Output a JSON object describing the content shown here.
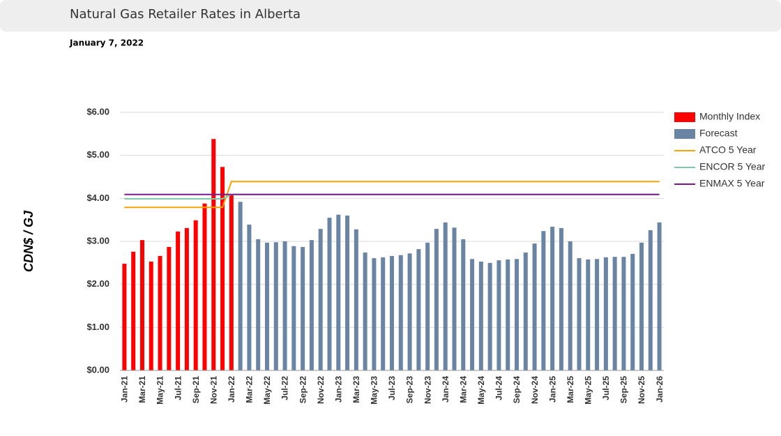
{
  "header": {
    "title": "Natural Gas Retailer Rates in Alberta",
    "date": "January 7, 2022"
  },
  "chart_data": {
    "type": "bar",
    "y_label": "CDN$ / GJ",
    "grid": true,
    "legend": "right",
    "categories": [
      "Jan-21",
      null,
      "Mar-21",
      null,
      "May-21",
      null,
      "Jul-21",
      null,
      "Sep-21",
      null,
      "Nov-21",
      null,
      "Jan-22",
      null,
      "Mar-22",
      null,
      "May-22",
      null,
      "Jul-22",
      null,
      "Sep-22",
      null,
      "Nov-22",
      null,
      "Jan-23",
      null,
      "Mar-23",
      null,
      "May-23",
      null,
      "Jul-23",
      null,
      "Sep-23",
      null,
      "Nov-23",
      null,
      "Jan-24",
      null,
      "Mar-24",
      null,
      "May-24",
      null,
      "Jul-24",
      null,
      "Sep-24",
      null,
      "Nov-24",
      null,
      "Jan-25",
      null,
      "Mar-25",
      null,
      "May-25",
      null,
      "Jul-25",
      null,
      "Sep-25",
      null,
      "Nov-25",
      null,
      "Jan-26"
    ],
    "ylim": [
      0,
      6
    ],
    "yticks": [
      {
        "value": 0,
        "label": "$0.00"
      },
      {
        "value": 1,
        "label": "$1.00"
      },
      {
        "value": 2,
        "label": "$2.00"
      },
      {
        "value": 3,
        "label": "$3.00"
      },
      {
        "value": 4,
        "label": "$4.00"
      },
      {
        "value": 5,
        "label": "$5.00"
      },
      {
        "value": 6,
        "label": "$6.00"
      }
    ],
    "series": [
      {
        "name": "Monthly Index",
        "type": "bar",
        "color": "#ff0000",
        "values": [
          2.48,
          2.76,
          3.03,
          2.53,
          2.66,
          2.87,
          3.23,
          3.31,
          3.49,
          3.88,
          5.38,
          4.73,
          4.07,
          null,
          null,
          null,
          null,
          null,
          null,
          null,
          null,
          null,
          null,
          null,
          null,
          null,
          null,
          null,
          null,
          null,
          null,
          null,
          null,
          null,
          null,
          null,
          null,
          null,
          null,
          null,
          null,
          null,
          null,
          null,
          null,
          null,
          null,
          null,
          null,
          null,
          null,
          null,
          null,
          null,
          null,
          null,
          null,
          null,
          null,
          null,
          null
        ]
      },
      {
        "name": "Forecast",
        "type": "bar",
        "color": "#6a85a3",
        "values": [
          null,
          null,
          null,
          null,
          null,
          null,
          null,
          null,
          null,
          null,
          null,
          null,
          null,
          3.92,
          3.39,
          3.05,
          2.97,
          2.98,
          3.0,
          2.89,
          2.87,
          3.03,
          3.29,
          3.55,
          3.62,
          3.6,
          3.28,
          2.74,
          2.61,
          2.63,
          2.66,
          2.68,
          2.72,
          2.82,
          2.97,
          3.29,
          3.44,
          3.32,
          3.05,
          2.59,
          2.53,
          2.5,
          2.56,
          2.58,
          2.59,
          2.74,
          2.95,
          3.24,
          3.34,
          3.31,
          3.0,
          2.61,
          2.58,
          2.59,
          2.63,
          2.64,
          2.64,
          2.71,
          2.97,
          3.26,
          3.44
        ]
      },
      {
        "name": "ATCO 5 Year",
        "type": "line",
        "color": "#f5a300",
        "values": [
          3.79,
          3.79,
          3.79,
          3.79,
          3.79,
          3.79,
          3.79,
          3.79,
          3.79,
          3.79,
          3.79,
          3.79,
          4.39,
          4.39,
          4.39,
          4.39,
          4.39,
          4.39,
          4.39,
          4.39,
          4.39,
          4.39,
          4.39,
          4.39,
          4.39,
          4.39,
          4.39,
          4.39,
          4.39,
          4.39,
          4.39,
          4.39,
          4.39,
          4.39,
          4.39,
          4.39,
          4.39,
          4.39,
          4.39,
          4.39,
          4.39,
          4.39,
          4.39,
          4.39,
          4.39,
          4.39,
          4.39,
          4.39,
          4.39,
          4.39,
          4.39,
          4.39,
          4.39,
          4.39,
          4.39,
          4.39,
          4.39,
          4.39,
          4.39,
          4.39,
          4.39
        ]
      },
      {
        "name": "ENCOR 5 Year",
        "type": "line",
        "color": "#7fc8a9",
        "values": [
          3.99,
          3.99,
          3.99,
          3.99,
          3.99,
          3.99,
          3.99,
          3.99,
          3.99,
          3.99,
          3.99,
          3.99,
          4.09,
          4.09,
          4.09,
          4.09,
          4.09,
          4.09,
          4.09,
          4.09,
          4.09,
          4.09,
          4.09,
          4.09,
          4.09,
          4.09,
          4.09,
          4.09,
          4.09,
          4.09,
          4.09,
          4.09,
          4.09,
          4.09,
          4.09,
          4.09,
          4.09,
          4.09,
          4.09,
          4.09,
          4.09,
          4.09,
          4.09,
          4.09,
          4.09,
          4.09,
          4.09,
          4.09,
          4.09,
          4.09,
          4.09,
          4.09,
          4.09,
          4.09,
          4.09,
          4.09,
          4.09,
          4.09,
          4.09,
          4.09,
          4.09
        ]
      },
      {
        "name": "ENMAX 5 Year",
        "type": "line",
        "color": "#7b1a8a",
        "values": [
          4.09,
          4.09,
          4.09,
          4.09,
          4.09,
          4.09,
          4.09,
          4.09,
          4.09,
          4.09,
          4.09,
          4.09,
          4.09,
          4.09,
          4.09,
          4.09,
          4.09,
          4.09,
          4.09,
          4.09,
          4.09,
          4.09,
          4.09,
          4.09,
          4.09,
          4.09,
          4.09,
          4.09,
          4.09,
          4.09,
          4.09,
          4.09,
          4.09,
          4.09,
          4.09,
          4.09,
          4.09,
          4.09,
          4.09,
          4.09,
          4.09,
          4.09,
          4.09,
          4.09,
          4.09,
          4.09,
          4.09,
          4.09,
          4.09,
          4.09,
          4.09,
          4.09,
          4.09,
          4.09,
          4.09,
          4.09,
          4.09,
          4.09,
          4.09,
          4.09,
          4.09
        ]
      }
    ]
  }
}
